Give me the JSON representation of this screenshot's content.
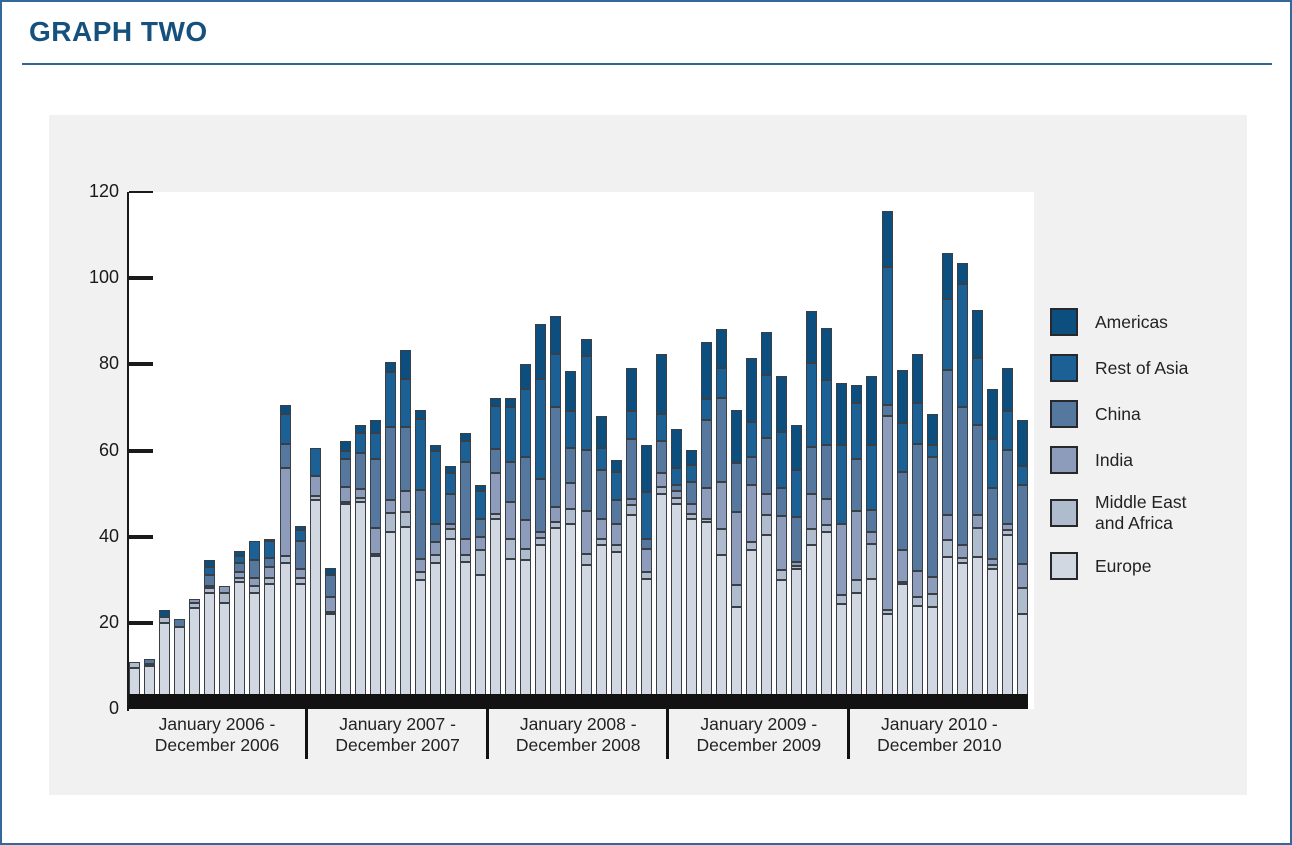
{
  "title": "GRAPH TWO",
  "legend": [
    {
      "key": "americas",
      "color": "#0C4E7E",
      "label": "Americas",
      "label_lines": [
        "Americas"
      ]
    },
    {
      "key": "rest_of_asia",
      "color": "#1C6195",
      "label": "Rest of Asia",
      "label_lines": [
        "Rest of Asia"
      ]
    },
    {
      "key": "china",
      "color": "#56789F",
      "label": "China",
      "label_lines": [
        "China"
      ]
    },
    {
      "key": "india",
      "color": "#8C9CBA",
      "label": "India",
      "label_lines": [
        "India"
      ]
    },
    {
      "key": "middle_east_africa",
      "color": "#AFBCCE",
      "label": "Middle East and Africa",
      "label_lines": [
        "Middle East",
        "and Africa"
      ]
    },
    {
      "key": "europe",
      "color": "#D2D8E2",
      "label": "Europe",
      "label_lines": [
        "Europe"
      ]
    }
  ],
  "chart_data": {
    "type": "bar",
    "stacked": true,
    "title": "GRAPH TWO",
    "xlabel": "",
    "ylabel": "",
    "ylim": [
      0,
      120
    ],
    "yticks": [
      0,
      20,
      40,
      60,
      80,
      100,
      120
    ],
    "grid": false,
    "legend_position": "right",
    "months_per_group": 12,
    "x_groups": [
      {
        "label_line1": "January 2006 -",
        "label_line2": "December 2006"
      },
      {
        "label_line1": "January 2007 -",
        "label_line2": "December 2007"
      },
      {
        "label_line1": "January 2008 -",
        "label_line2": "December 2008"
      },
      {
        "label_line1": "January 2009 -",
        "label_line2": "December 2009"
      },
      {
        "label_line1": "January 2010 -",
        "label_line2": "December 2010"
      }
    ],
    "stack_order_bottom_to_top": [
      "europe",
      "middle_east_africa",
      "india",
      "china",
      "rest_of_asia",
      "americas"
    ],
    "series": [
      {
        "key": "europe",
        "name": "Europe",
        "color": "#D2D8E2",
        "values": [
          9.5,
          10,
          20,
          19,
          23.5,
          27,
          24.5,
          29.5,
          27,
          29,
          34,
          29,
          48.5,
          22,
          47.5,
          48,
          35.5,
          41,
          42.3,
          30,
          34,
          39.5,
          34.2,
          31.2,
          44,
          34.9,
          34.7,
          38,
          42,
          43,
          33.5,
          38.1,
          36.5,
          45.1,
          30.2,
          49.8,
          47.5,
          44.2,
          43.5,
          35.8,
          23.7,
          37,
          40.5,
          30,
          32.6,
          38.1,
          41.2,
          24.4,
          27,
          30.2,
          22,
          29,
          24,
          23.7,
          35.3,
          34,
          35.3,
          32.5,
          40.5,
          22.1
        ]
      },
      {
        "key": "middle_east_africa",
        "name": "Middle East and Africa",
        "color": "#AFBCCE",
        "values": [
          1.5,
          0.5,
          1.3,
          0,
          1,
          1,
          2.5,
          1,
          1.5,
          1.5,
          1.5,
          1.5,
          1,
          0.5,
          0.5,
          1,
          0.5,
          4.5,
          3.5,
          1.9,
          1.8,
          2.4,
          1.6,
          5.8,
          1.3,
          4.6,
          2.5,
          1.6,
          1.5,
          3.5,
          2.5,
          1.4,
          1.6,
          2.2,
          1.7,
          1.8,
          1.5,
          1.1,
          0.5,
          6.1,
          5.1,
          1.8,
          4.6,
          2.3,
          0.5,
          3.8,
          1.6,
          2.1,
          3,
          8.2,
          1,
          0.5,
          2,
          3,
          4,
          1,
          6.8,
          1,
          1.1,
          6
        ]
      },
      {
        "key": "india",
        "name": "India",
        "color": "#8C9CBA",
        "values": [
          0,
          0,
          0,
          0,
          1,
          0.5,
          1.5,
          1.2,
          2,
          2.5,
          20.5,
          2,
          4.5,
          3.5,
          3.5,
          2,
          6,
          3,
          4.7,
          3,
          3,
          1.1,
          3.7,
          3,
          9.5,
          8.6,
          6.7,
          1.6,
          3.5,
          6,
          10,
          4.5,
          4.9,
          1.5,
          5.3,
          3.1,
          1.5,
          2.4,
          7.4,
          10.9,
          17,
          13.3,
          4.7,
          12.4,
          1.1,
          8.1,
          6,
          16.5,
          16,
          2.8,
          45,
          7.5,
          6,
          4,
          5.8,
          3.1,
          3,
          1.4,
          1.4,
          5.6
        ]
      },
      {
        "key": "china",
        "name": "China",
        "color": "#56789F",
        "values": [
          0,
          1,
          0,
          2,
          0,
          2.5,
          0,
          2.3,
          4,
          2,
          5.5,
          6.5,
          0,
          5,
          6.5,
          8.5,
          16,
          17,
          15,
          16,
          4.2,
          7,
          17.9,
          4.2,
          5.5,
          9.3,
          14.7,
          12.3,
          23.2,
          8,
          14.2,
          11.6,
          5.6,
          13.8,
          2.3,
          7.4,
          1.5,
          5.1,
          15.8,
          19.3,
          11.2,
          6.5,
          13,
          6.5,
          10.3,
          10.9,
          12.6,
          0,
          12,
          5.1,
          2.5,
          18,
          29.5,
          27.7,
          33.7,
          32.1,
          20.9,
          16.3,
          17.2,
          18.4
        ]
      },
      {
        "key": "rest_of_asia",
        "name": "Rest of Asia",
        "color": "#1C6195",
        "values": [
          0,
          0,
          0,
          0,
          0,
          2,
          0,
          1.5,
          4.5,
          4,
          7,
          2.5,
          6.5,
          0,
          1.8,
          4.5,
          6,
          12.8,
          11,
          16.5,
          16.8,
          4.7,
          4.7,
          6.3,
          10,
          12.7,
          15.6,
          23,
          12.1,
          8.6,
          21.8,
          4.9,
          6.5,
          6.5,
          10.9,
          6.3,
          4,
          3.9,
          4.7,
          7,
          0,
          8,
          14.8,
          13.2,
          11.1,
          19.4,
          15,
          18.4,
          13,
          15.1,
          32,
          11.5,
          9.5,
          3,
          16.3,
          28.4,
          15.4,
          11.4,
          8.9,
          4.2
        ]
      },
      {
        "key": "americas",
        "name": "Americas",
        "color": "#0C4E7E",
        "values": [
          0,
          0,
          1.7,
          0,
          0,
          1.5,
          0,
          1.2,
          0,
          0.5,
          2,
          1,
          0,
          1.8,
          2.5,
          2,
          3.2,
          2.2,
          6.8,
          2.1,
          1.6,
          1.6,
          1.9,
          1.6,
          1.8,
          2,
          6,
          12.8,
          8.9,
          9.3,
          4,
          7.6,
          2.8,
          10,
          11,
          13.9,
          9.1,
          3.5,
          13.2,
          9,
          12.5,
          14.8,
          9.8,
          12.8,
          10.4,
          12,
          12,
          14.2,
          4.2,
          15.8,
          13,
          12.3,
          11.3,
          7,
          10.7,
          4.9,
          11.2,
          11.8,
          10,
          10.9
        ]
      }
    ]
  }
}
